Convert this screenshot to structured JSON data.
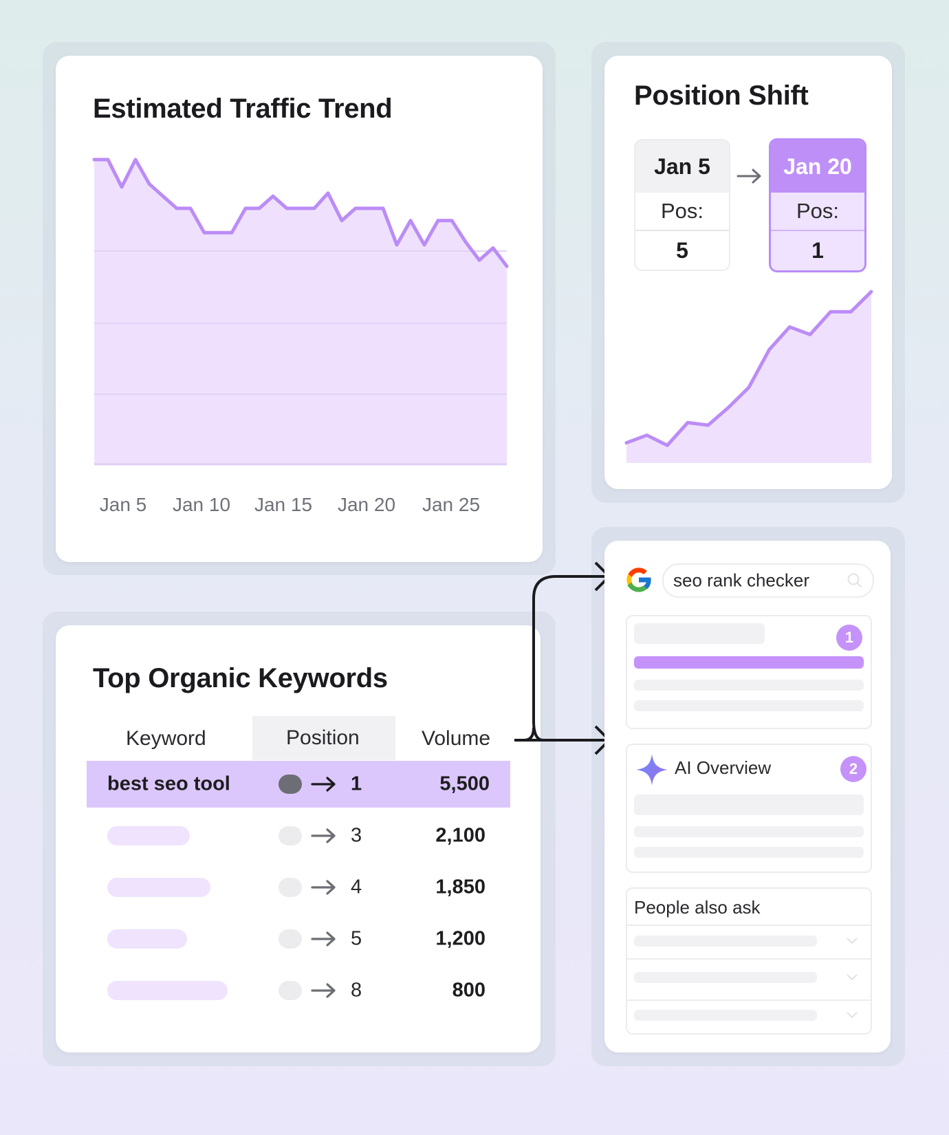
{
  "traffic_card": {
    "title": "Estimated Traffic Trend",
    "chart_data": {
      "type": "area",
      "x_labels": [
        "Jan 5",
        "Jan 10",
        "Jan 15",
        "Jan 20",
        "Jan 25"
      ],
      "values": [
        100,
        100,
        91,
        100,
        92,
        88,
        84,
        84,
        76,
        76,
        76,
        84,
        84,
        88,
        84,
        84,
        84,
        89,
        80,
        84,
        84,
        84,
        72,
        80,
        72,
        80,
        80,
        73,
        67,
        71,
        65
      ],
      "grid": true,
      "colors": {
        "line": "#bb8cf6",
        "fill": "#efe1fd"
      }
    }
  },
  "position_card": {
    "title": "Position Shift",
    "before": {
      "date": "Jan 5",
      "label": "Pos:",
      "value": "5"
    },
    "after": {
      "date": "Jan 20",
      "label": "Pos:",
      "value": "1"
    },
    "chart_data": {
      "type": "area",
      "values": [
        48,
        51,
        47,
        56,
        55,
        62,
        70,
        85,
        94,
        91,
        100,
        100,
        108
      ],
      "colors": {
        "line": "#bb8cf6",
        "fill": "#efe1fd"
      }
    }
  },
  "keywords_card": {
    "title": "Top Organic Keywords",
    "columns": [
      "Keyword",
      "Position",
      "Volume"
    ],
    "rows": [
      {
        "keyword": "best seo tool",
        "position": "1",
        "volume": "5,500",
        "highlight": true
      },
      {
        "keyword": "",
        "position": "3",
        "volume": "2,100"
      },
      {
        "keyword": "",
        "position": "4",
        "volume": "1,850"
      },
      {
        "keyword": "",
        "position": "5",
        "volume": "1,200"
      },
      {
        "keyword": "",
        "position": "8",
        "volume": "800"
      }
    ]
  },
  "serp_card": {
    "search_query": "seo rank checker",
    "result_badge": "1",
    "ai_overview": {
      "label": "AI Overview",
      "badge": "2"
    },
    "people_also_ask": {
      "label": "People also ask"
    },
    "icons": {
      "engine": "google-logo-icon",
      "search": "search-icon",
      "ai": "sparkle-icon",
      "expand": "chevron-down-icon"
    }
  }
}
